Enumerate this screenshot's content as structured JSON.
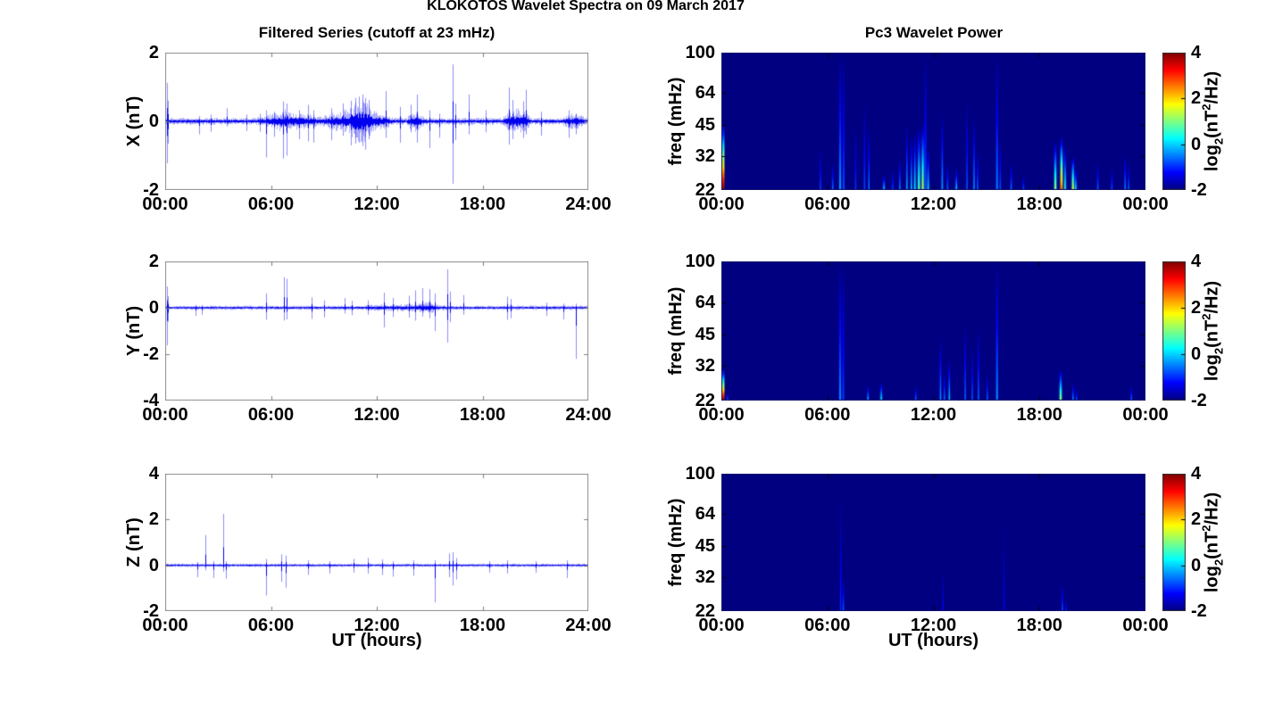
{
  "figure": {
    "title": "KLOKOTOS Wavelet Spectra on 09 March 2017",
    "background": "#ffffff",
    "series_color": "#0000EE",
    "colormap": "jet"
  },
  "chart_data": [
    {
      "id": "ts-x",
      "type": "line",
      "title": "Filtered Series (cutoff at 23 mHz)",
      "ylabel": "X (nT)",
      "ylim": [
        -2,
        2
      ],
      "yticks": [
        2,
        0,
        -2
      ],
      "xlim_hours": [
        0,
        24
      ],
      "x_tick_labels": [
        "00:00",
        "06:00",
        "12:00",
        "18:00",
        "24:00"
      ],
      "color": "#0000EE",
      "noise_base": 0.055,
      "bursts": [
        {
          "t0": 5.2,
          "t1": 9.0,
          "amp": 0.15
        },
        {
          "t0": 6.3,
          "t1": 7.2,
          "amp": 0.2
        },
        {
          "t0": 8.9,
          "t1": 12.9,
          "amp": 0.2
        },
        {
          "t0": 10.3,
          "t1": 11.9,
          "amp": 0.33
        },
        {
          "t0": 13.7,
          "t1": 14.7,
          "amp": 0.16
        },
        {
          "t0": 19.2,
          "t1": 20.7,
          "amp": 0.2
        },
        {
          "t0": 22.5,
          "t1": 23.9,
          "amp": 0.13
        }
      ],
      "spikes": [
        [
          0.08,
          1.12,
          -1.22
        ],
        [
          0.16,
          0.6,
          -0.65
        ],
        [
          1.9,
          0.15,
          -0.38
        ],
        [
          2.6,
          0.2,
          -0.3
        ],
        [
          3.5,
          0.38,
          -0.15
        ],
        [
          4.6,
          0.2,
          -0.28
        ],
        [
          5.35,
          0.22,
          -0.3
        ],
        [
          5.72,
          0.32,
          -1.05
        ],
        [
          6.2,
          0.28,
          -0.45
        ],
        [
          6.68,
          0.58,
          -1.08
        ],
        [
          6.9,
          0.52,
          -1.0
        ],
        [
          7.6,
          0.32,
          -0.52
        ],
        [
          8.1,
          0.48,
          -0.58
        ],
        [
          8.42,
          0.32,
          -0.62
        ],
        [
          9.4,
          0.38,
          -0.55
        ],
        [
          10.1,
          0.52,
          -0.42
        ],
        [
          10.55,
          0.6,
          -0.7
        ],
        [
          10.8,
          0.68,
          -0.65
        ],
        [
          11.0,
          0.72,
          -0.62
        ],
        [
          11.18,
          0.78,
          -0.72
        ],
        [
          11.36,
          0.68,
          -0.82
        ],
        [
          11.52,
          0.62,
          -0.52
        ],
        [
          12.5,
          0.88,
          -0.48
        ],
        [
          13.3,
          0.42,
          -0.62
        ],
        [
          13.9,
          0.48,
          -0.32
        ],
        [
          14.3,
          0.78,
          -0.62
        ],
        [
          15.0,
          0.32,
          -0.78
        ],
        [
          15.55,
          0.22,
          -0.48
        ],
        [
          16.28,
          1.66,
          -1.82
        ],
        [
          16.45,
          0.52,
          -0.55
        ],
        [
          17.2,
          0.78,
          -0.38
        ],
        [
          18.2,
          0.32,
          -0.32
        ],
        [
          19.5,
          0.98,
          -0.68
        ],
        [
          19.68,
          0.62,
          -0.52
        ],
        [
          20.3,
          0.58,
          -0.48
        ],
        [
          20.46,
          0.92,
          -0.38
        ],
        [
          21.3,
          0.28,
          -0.42
        ],
        [
          22.9,
          0.32,
          -0.48
        ],
        [
          23.3,
          0.22,
          -0.38
        ]
      ]
    },
    {
      "id": "ts-y",
      "type": "line",
      "ylabel": "Y (nT)",
      "ylim": [
        -4,
        2
      ],
      "yticks": [
        2,
        0,
        -2,
        -4
      ],
      "xlim_hours": [
        0,
        24
      ],
      "x_tick_labels": [
        "00:00",
        "06:00",
        "12:00",
        "18:00",
        "24:00"
      ],
      "color": "#0000EE",
      "noise_base": 0.05,
      "bursts": [
        {
          "t0": 10.2,
          "t1": 17.0,
          "amp": 0.09
        },
        {
          "t0": 13.9,
          "t1": 15.7,
          "amp": 0.13
        }
      ],
      "spikes": [
        [
          0.08,
          0.92,
          -1.62
        ],
        [
          0.16,
          0.5,
          -0.6
        ],
        [
          1.7,
          0.12,
          -0.35
        ],
        [
          2.1,
          0.12,
          -0.3
        ],
        [
          5.7,
          0.62,
          -0.52
        ],
        [
          6.72,
          1.32,
          -0.55
        ],
        [
          6.9,
          1.25,
          -0.5
        ],
        [
          8.3,
          0.45,
          -0.48
        ],
        [
          9.0,
          0.32,
          -0.42
        ],
        [
          10.2,
          0.42,
          -0.25
        ],
        [
          10.6,
          0.3,
          -0.32
        ],
        [
          11.5,
          0.32,
          -0.3
        ],
        [
          12.4,
          0.65,
          -0.85
        ],
        [
          12.9,
          0.42,
          -0.4
        ],
        [
          13.8,
          0.52,
          -0.42
        ],
        [
          14.2,
          0.75,
          -0.55
        ],
        [
          14.6,
          0.85,
          -0.38
        ],
        [
          15.0,
          0.8,
          -0.45
        ],
        [
          15.3,
          0.62,
          -1.0
        ],
        [
          15.98,
          1.66,
          -1.5
        ],
        [
          16.15,
          0.7,
          -0.62
        ],
        [
          16.9,
          0.55,
          -0.3
        ],
        [
          19.4,
          0.48,
          -0.52
        ],
        [
          19.62,
          0.38,
          -0.45
        ],
        [
          21.6,
          0.22,
          -0.35
        ],
        [
          22.6,
          0.18,
          -0.5
        ],
        [
          23.3,
          0.18,
          -2.2
        ]
      ]
    },
    {
      "id": "ts-z",
      "type": "line",
      "ylabel": "Z (nT)",
      "ylim": [
        -2,
        4
      ],
      "yticks": [
        4,
        2,
        0,
        -2
      ],
      "xlim_hours": [
        0,
        24
      ],
      "x_tick_labels": [
        "00:00",
        "06:00",
        "12:00",
        "18:00",
        "24:00"
      ],
      "xlabel": "UT (hours)",
      "color": "#0000EE",
      "noise_base": 0.042,
      "bursts": [],
      "spikes": [
        [
          1.8,
          0.15,
          -0.52
        ],
        [
          2.3,
          1.32,
          -0.22
        ],
        [
          2.72,
          0.18,
          -0.55
        ],
        [
          3.3,
          2.25,
          -0.28
        ],
        [
          3.46,
          0.18,
          -0.58
        ],
        [
          5.7,
          0.28,
          -1.32
        ],
        [
          6.6,
          0.48,
          -0.72
        ],
        [
          6.82,
          0.42,
          -0.98
        ],
        [
          8.1,
          0.22,
          -0.42
        ],
        [
          9.3,
          0.18,
          -0.36
        ],
        [
          10.7,
          0.28,
          -0.32
        ],
        [
          11.5,
          0.32,
          -0.36
        ],
        [
          12.3,
          0.26,
          -0.42
        ],
        [
          12.9,
          0.18,
          -0.5
        ],
        [
          14.1,
          0.22,
          -0.46
        ],
        [
          15.3,
          0.22,
          -1.62
        ],
        [
          16.1,
          0.52,
          -0.52
        ],
        [
          16.32,
          0.58,
          -0.88
        ],
        [
          16.5,
          0.32,
          -0.62
        ],
        [
          18.4,
          0.18,
          -0.32
        ],
        [
          19.4,
          0.22,
          -0.36
        ],
        [
          21.0,
          0.18,
          -0.32
        ],
        [
          22.8,
          0.22,
          -0.56
        ]
      ]
    },
    {
      "id": "wavelet-x",
      "type": "heatmap",
      "title": "Pc3 Wavelet Power",
      "ylabel": "freq (mHz)",
      "ylim": [
        22,
        100
      ],
      "yscale": "log",
      "yticks": [
        100,
        64,
        45,
        32,
        22
      ],
      "xlim_hours": [
        0,
        24
      ],
      "x_tick_labels": [
        "00:00",
        "06:00",
        "12:00",
        "18:00",
        "00:00"
      ],
      "value_units": "log2(nT^2/Hz)",
      "colorbar": {
        "range": [
          -2,
          4
        ],
        "ticks": [
          4,
          2,
          0,
          -2
        ],
        "label_parts": [
          [
            "",
            "log"
          ],
          [
            "sub",
            "2"
          ],
          [
            "",
            "(nT"
          ],
          [
            "sup",
            "2"
          ],
          [
            "",
            "/Hz)"
          ]
        ]
      },
      "background_value": -2,
      "edge_events": [
        {
          "t": 0.1,
          "fmax": 46,
          "v": 4,
          "w": 3
        }
      ],
      "events": [
        [
          5.6,
          35,
          -0.8
        ],
        [
          6.3,
          30,
          -0.5
        ],
        [
          6.72,
          100,
          -0.3
        ],
        [
          6.92,
          100,
          -0.8
        ],
        [
          7.6,
          45,
          -0.9
        ],
        [
          8.1,
          60,
          -0.8
        ],
        [
          8.35,
          45,
          -0.5
        ],
        [
          9.2,
          26,
          0.2
        ],
        [
          9.7,
          28,
          -0.8
        ],
        [
          10.1,
          32,
          -0.4
        ],
        [
          10.5,
          46,
          -0.2
        ],
        [
          10.75,
          40,
          0.0
        ],
        [
          10.95,
          42,
          0.3
        ],
        [
          11.18,
          44,
          0.9
        ],
        [
          11.4,
          46,
          1.5
        ],
        [
          11.55,
          100,
          -0.7
        ],
        [
          11.7,
          35,
          0.2
        ],
        [
          12.5,
          52,
          -0.2
        ],
        [
          12.8,
          30,
          -0.6
        ],
        [
          13.3,
          28,
          0.1
        ],
        [
          13.9,
          60,
          -0.7
        ],
        [
          14.3,
          50,
          -0.3
        ],
        [
          14.5,
          34,
          -0.6
        ],
        [
          15.6,
          100,
          -0.5
        ],
        [
          15.78,
          40,
          -0.7
        ],
        [
          16.4,
          30,
          -0.5
        ],
        [
          17.1,
          26,
          -0.7
        ],
        [
          18.9,
          38,
          1.2
        ],
        [
          19.25,
          40,
          2.8
        ],
        [
          19.45,
          36,
          0.6
        ],
        [
          19.9,
          32,
          1.7
        ],
        [
          20.05,
          28,
          0.3
        ],
        [
          21.3,
          30,
          -0.6
        ],
        [
          22.1,
          28,
          -0.7
        ],
        [
          22.85,
          33,
          -0.4
        ],
        [
          23.05,
          30,
          -0.6
        ]
      ]
    },
    {
      "id": "wavelet-y",
      "type": "heatmap",
      "ylabel": "freq (mHz)",
      "ylim": [
        22,
        100
      ],
      "yscale": "log",
      "yticks": [
        100,
        64,
        45,
        32,
        22
      ],
      "xlim_hours": [
        0,
        24
      ],
      "x_tick_labels": [
        "00:00",
        "06:00",
        "12:00",
        "18:00",
        "00:00"
      ],
      "value_units": "log2(nT^2/Hz)",
      "colorbar": {
        "range": [
          -2,
          4
        ],
        "ticks": [
          4,
          2,
          0,
          -2
        ],
        "label_parts": [
          [
            "",
            "log"
          ],
          [
            "sub",
            "2"
          ],
          [
            "",
            "(nT"
          ],
          [
            "sup",
            "2"
          ],
          [
            "",
            "/Hz)"
          ]
        ]
      },
      "background_value": -2,
      "edge_events": [
        {
          "t": 0.1,
          "fmax": 31,
          "v": 4,
          "w": 3
        }
      ],
      "events": [
        [
          0.35,
          24,
          -0.5
        ],
        [
          6.72,
          100,
          -0.4
        ],
        [
          6.9,
          100,
          -0.9
        ],
        [
          8.3,
          26,
          0.0
        ],
        [
          9.05,
          27,
          0.4
        ],
        [
          11.0,
          26,
          -0.5
        ],
        [
          12.4,
          44,
          -0.3
        ],
        [
          12.62,
          30,
          -0.5
        ],
        [
          12.9,
          35,
          0.0
        ],
        [
          13.8,
          52,
          -0.6
        ],
        [
          14.2,
          40,
          -0.7
        ],
        [
          14.55,
          50,
          -0.6
        ],
        [
          15.05,
          30,
          -0.6
        ],
        [
          15.6,
          100,
          -0.4
        ],
        [
          19.2,
          31,
          1.3
        ],
        [
          19.9,
          27,
          -0.3
        ],
        [
          20.1,
          25,
          -0.6
        ],
        [
          23.2,
          26,
          -0.5
        ]
      ]
    },
    {
      "id": "wavelet-z",
      "type": "heatmap",
      "ylabel": "freq (mHz)",
      "ylim": [
        22,
        100
      ],
      "yscale": "log",
      "yticks": [
        100,
        64,
        45,
        32,
        22
      ],
      "xlim_hours": [
        0,
        24
      ],
      "x_tick_labels": [
        "00:00",
        "06:00",
        "12:00",
        "18:00",
        "00:00"
      ],
      "xlabel": "UT (hours)",
      "value_units": "log2(nT^2/Hz)",
      "colorbar": {
        "range": [
          -2,
          4
        ],
        "ticks": [
          4,
          2,
          0,
          -2
        ],
        "label_parts": [
          [
            "",
            "log"
          ],
          [
            "sub",
            "2"
          ],
          [
            "",
            "(nT"
          ],
          [
            "sup",
            "2"
          ],
          [
            "",
            "/Hz)"
          ]
        ]
      },
      "background_value": -2,
      "edge_events": [],
      "events": [
        [
          6.75,
          80,
          -1.0
        ],
        [
          6.9,
          32,
          -0.6
        ],
        [
          12.55,
          35,
          -1.2
        ],
        [
          16.0,
          60,
          -1.3
        ],
        [
          19.3,
          30,
          -0.7
        ],
        [
          19.5,
          25,
          -1.0
        ]
      ]
    }
  ]
}
